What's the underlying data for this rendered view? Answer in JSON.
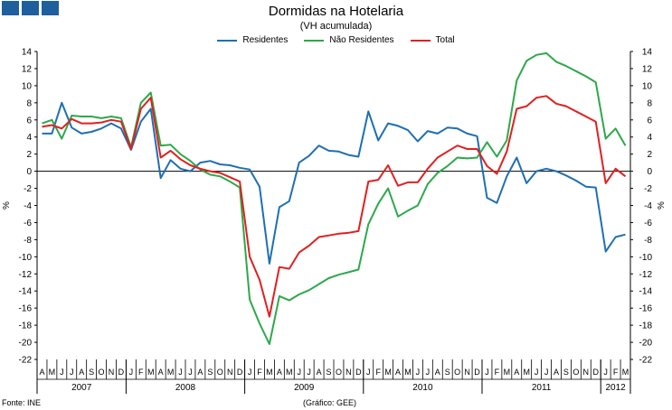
{
  "header": {
    "logo_color": "#1f5f9e",
    "title": "Dormidas na Hotelaria",
    "subtitle": "(VH acumulada)"
  },
  "footer": {
    "source": "Fonte: INE",
    "credit": "(Gráfico: GEE)"
  },
  "chart_data": {
    "type": "line",
    "title": "Dormidas na Hotelaria",
    "subtitle": "(VH acumulada)",
    "ylabel": "%",
    "ylim": [
      -22,
      14
    ],
    "yticks": [
      14,
      12,
      10,
      8,
      6,
      4,
      2,
      0,
      -2,
      -4,
      -6,
      -8,
      -10,
      -12,
      -14,
      -16,
      -18,
      -20,
      -22
    ],
    "grid": false,
    "legend_position": "top-center",
    "x": [
      "2007-04",
      "2007-05",
      "2007-06",
      "2007-07",
      "2007-08",
      "2007-09",
      "2007-10",
      "2007-11",
      "2007-12",
      "2008-01",
      "2008-02",
      "2008-03",
      "2008-04",
      "2008-05",
      "2008-06",
      "2008-07",
      "2008-08",
      "2008-09",
      "2008-10",
      "2008-11",
      "2008-12",
      "2009-01",
      "2009-02",
      "2009-03",
      "2009-04",
      "2009-05",
      "2009-06",
      "2009-07",
      "2009-08",
      "2009-09",
      "2009-10",
      "2009-11",
      "2009-12",
      "2010-01",
      "2010-02",
      "2010-03",
      "2010-04",
      "2010-05",
      "2010-06",
      "2010-07",
      "2010-08",
      "2010-09",
      "2010-10",
      "2010-11",
      "2010-12",
      "2011-01",
      "2011-02",
      "2011-03",
      "2011-04",
      "2011-05",
      "2011-06",
      "2011-07",
      "2011-08",
      "2011-09",
      "2011-10",
      "2011-11",
      "2011-12",
      "2012-01",
      "2012-02",
      "2012-03"
    ],
    "month_labels": [
      "A",
      "M",
      "J",
      "J",
      "A",
      "S",
      "O",
      "N",
      "D",
      "J",
      "F",
      "M",
      "A",
      "M",
      "J",
      "J",
      "A",
      "S",
      "O",
      "N",
      "D",
      "J",
      "F",
      "M",
      "A",
      "M",
      "J",
      "J",
      "A",
      "S",
      "O",
      "N",
      "D",
      "J",
      "F",
      "M",
      "A",
      "M",
      "J",
      "J",
      "A",
      "S",
      "O",
      "N",
      "D",
      "J",
      "F",
      "M",
      "A",
      "M",
      "J",
      "J",
      "A",
      "S",
      "O",
      "N",
      "D",
      "J",
      "F",
      "M"
    ],
    "year_groups": [
      {
        "label": "2007",
        "start": 0,
        "end": 8
      },
      {
        "label": "2008",
        "start": 9,
        "end": 20
      },
      {
        "label": "2009",
        "start": 21,
        "end": 32
      },
      {
        "label": "2010",
        "start": 33,
        "end": 44
      },
      {
        "label": "2011",
        "start": 45,
        "end": 56
      },
      {
        "label": "2012",
        "start": 57,
        "end": 59
      }
    ],
    "series": [
      {
        "name": "Residentes",
        "color": "#1f6fb2",
        "values": [
          4.4,
          4.4,
          8.0,
          5.1,
          4.4,
          4.6,
          5.0,
          5.6,
          5.0,
          2.5,
          5.8,
          7.3,
          -0.8,
          1.3,
          0.3,
          0.0,
          1.0,
          1.2,
          0.8,
          0.7,
          0.4,
          0.2,
          -1.8,
          -10.8,
          -4.2,
          -3.5,
          1.0,
          1.8,
          3.0,
          2.4,
          2.3,
          1.9,
          1.7,
          7.0,
          3.6,
          5.6,
          5.3,
          4.8,
          3.5,
          4.7,
          4.4,
          5.1,
          5.0,
          4.4,
          4.1,
          -3.1,
          -3.7,
          -0.6,
          1.6,
          -1.4,
          0.0,
          0.3,
          0.0,
          -0.5,
          -1.1,
          -1.8,
          -1.9,
          -9.4,
          -7.7,
          -7.4
        ]
      },
      {
        "name": "Não Residentes",
        "color": "#2ea84a",
        "values": [
          5.6,
          6.0,
          3.8,
          6.5,
          6.4,
          6.4,
          6.2,
          6.4,
          6.2,
          2.8,
          8.0,
          9.2,
          3.0,
          3.1,
          2.0,
          1.2,
          0.2,
          -0.4,
          -0.6,
          -1.2,
          -1.9,
          -15.0,
          -17.8,
          -20.2,
          -14.6,
          -15.1,
          -14.4,
          -13.9,
          -13.2,
          -12.5,
          -12.1,
          -11.8,
          -11.5,
          -6.2,
          -3.8,
          -2.0,
          -5.3,
          -4.6,
          -4.0,
          -1.5,
          -0.2,
          0.6,
          1.6,
          1.5,
          1.6,
          3.4,
          1.7,
          3.6,
          10.6,
          12.9,
          13.6,
          13.8,
          12.8,
          12.3,
          11.7,
          11.1,
          10.4,
          3.8,
          5.0,
          3.0
        ]
      },
      {
        "name": "Total",
        "color": "#e02020",
        "values": [
          5.2,
          5.4,
          5.0,
          6.1,
          5.6,
          5.6,
          5.7,
          6.0,
          5.8,
          2.6,
          7.3,
          8.6,
          1.6,
          2.4,
          1.4,
          0.7,
          0.3,
          0.0,
          -0.2,
          -0.7,
          -1.2,
          -10.0,
          -12.7,
          -17.0,
          -11.2,
          -11.4,
          -9.5,
          -8.7,
          -7.7,
          -7.5,
          -7.3,
          -7.2,
          -7.0,
          -1.2,
          -1.0,
          0.7,
          -1.7,
          -1.3,
          -1.3,
          0.3,
          1.6,
          2.3,
          3.0,
          2.6,
          2.6,
          0.6,
          -0.3,
          2.3,
          7.3,
          7.6,
          8.6,
          8.8,
          7.9,
          7.6,
          7.0,
          6.4,
          5.8,
          -1.4,
          0.3,
          -0.6
        ]
      }
    ]
  }
}
